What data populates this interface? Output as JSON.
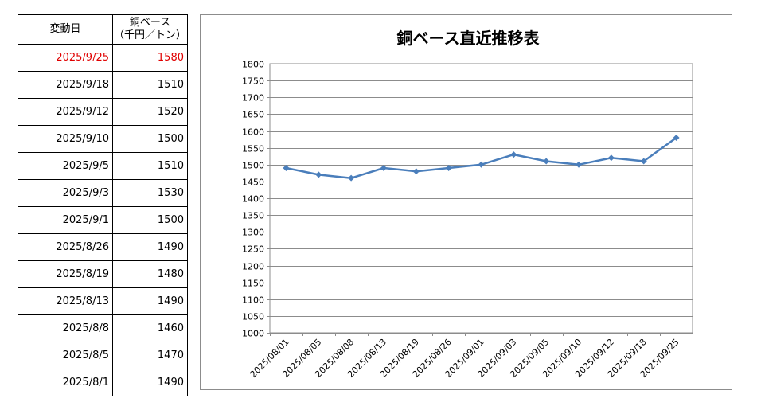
{
  "table": {
    "header_date": "変動日",
    "header_value_line1": "銅ベース",
    "header_value_line2": "（千円／トン）",
    "rows": [
      {
        "date": "2025/9/25",
        "value": "1580"
      },
      {
        "date": "2025/9/18",
        "value": "1510"
      },
      {
        "date": "2025/9/12",
        "value": "1520"
      },
      {
        "date": "2025/9/10",
        "value": "1500"
      },
      {
        "date": "2025/9/5",
        "value": "1510"
      },
      {
        "date": "2025/9/3",
        "value": "1530"
      },
      {
        "date": "2025/9/1",
        "value": "1500"
      },
      {
        "date": "2025/8/26",
        "value": "1490"
      },
      {
        "date": "2025/8/19",
        "value": "1480"
      },
      {
        "date": "2025/8/13",
        "value": "1490"
      },
      {
        "date": "2025/8/8",
        "value": "1460"
      },
      {
        "date": "2025/8/5",
        "value": "1470"
      },
      {
        "date": "2025/8/1",
        "value": "1490"
      }
    ],
    "latest_color": "#e00000"
  },
  "chart_data": {
    "type": "line",
    "title": "銅ベース直近推移表",
    "xlabel": "",
    "ylabel": "",
    "categories": [
      "2025/08/01",
      "2025/08/05",
      "2025/08/08",
      "2025/08/13",
      "2025/08/19",
      "2025/08/26",
      "2025/09/01",
      "2025/09/03",
      "2025/09/05",
      "2025/09/10",
      "2025/09/12",
      "2025/09/18",
      "2025/09/25"
    ],
    "series": [
      {
        "values": [
          1490,
          1470,
          1460,
          1490,
          1480,
          1490,
          1500,
          1530,
          1510,
          1500,
          1520,
          1510,
          1580
        ],
        "color": "#4a7ebb",
        "marker": "diamond"
      }
    ],
    "ylim": [
      1000,
      1800
    ],
    "yticks": [
      1000,
      1050,
      1100,
      1150,
      1200,
      1250,
      1300,
      1350,
      1400,
      1450,
      1500,
      1550,
      1600,
      1650,
      1700,
      1750,
      1800
    ],
    "grid": true,
    "legend": "none"
  }
}
